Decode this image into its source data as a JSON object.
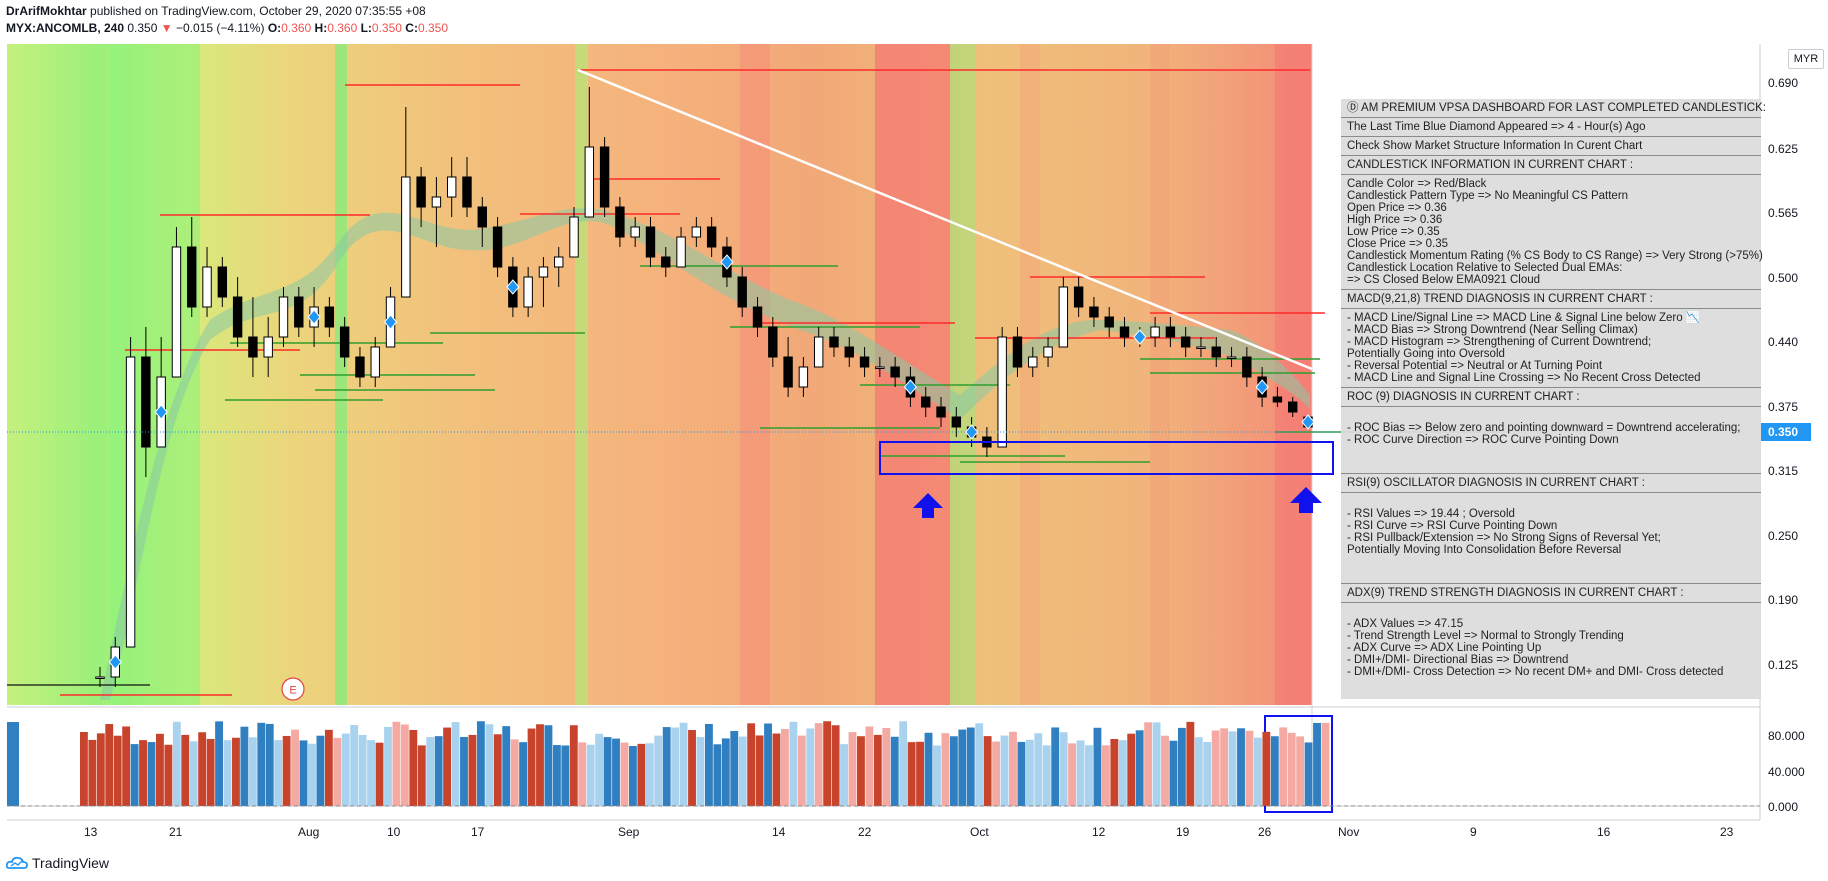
{
  "header": {
    "author": "DrArifMokhtar",
    "published_on": "published on TradingView.com, October 29, 2020 07:35:55 +08",
    "symbol": "MYX:ANCOMLB, 240",
    "last": "0.350",
    "change": "−0.015 (−4.11%)",
    "open_label": "O:",
    "open": "0.360",
    "high_label": "H:",
    "high": "0.360",
    "low_label": "L:",
    "low": "0.350",
    "close_label": "C:",
    "close": "0.350"
  },
  "currency": "MYR",
  "price_axis": {
    "labels": [
      "0.690",
      "0.625",
      "0.565",
      "0.500",
      "0.440",
      "0.375",
      "0.315",
      "0.250",
      "0.190",
      "0.125"
    ],
    "current_price": "0.350"
  },
  "indicator_axis": {
    "labels": [
      "80.000",
      "40.000",
      "0.000"
    ]
  },
  "time_axis": {
    "labels": [
      "13",
      "21",
      "Aug",
      "10",
      "17",
      "Sep",
      "14",
      "22",
      "Oct",
      "12",
      "19",
      "26",
      "Nov",
      "9",
      "16",
      "23"
    ]
  },
  "earnings_marker": "E",
  "dashboard": {
    "sections": [
      {
        "lines": [
          "Ⓓ AM PREMIUM VPSA DASHBOARD FOR LAST COMPLETED CANDLESTICK:"
        ]
      },
      {
        "lines": [
          "The Last Time Blue Diamond Appeared => 4 - Hour(s) Ago"
        ]
      },
      {
        "lines": [
          "Check Show Market Structure Information In Curent Chart"
        ]
      },
      {
        "lines": [
          "CANDLESTICK INFORMATION IN CURRENT CHART :"
        ]
      },
      {
        "lines": [
          "Candle Color => Red/Black",
          "Candlestick Pattern Type => No Meaningful CS Pattern",
          "Open Price => 0.36",
          "High Price => 0.36",
          "Low Price => 0.35",
          "Close Price => 0.35",
          "Candlestick Momentum Rating (% CS Body to CS Range) => Very Strong (>75%)",
          "Candlestick Location Relative to Selected Dual EMAs:",
          " => CS Closed Below EMA0921 Cloud"
        ]
      },
      {
        "lines": [
          "MACD(9,21,8) TREND DIAGNOSIS IN CURRENT CHART :"
        ]
      },
      {
        "lines": [
          "- MACD Line/Signal Line => MACD Line & Signal Line below Zero 📉",
          "- MACD Bias => Strong Downtrend (Near Selling Climax)",
          "- MACD Histogram => Strengthening of Current Downtrend;",
          "  Potentially Going into Oversold",
          "- Reversal Potential => Neutral or At Turning Point",
          "- MACD Line and Signal Line Crossing => No Recent Cross Detected"
        ]
      },
      {
        "lines": [
          "ROC (9) DIAGNOSIS IN CURRENT CHART :"
        ]
      },
      {
        "lines": [
          "",
          "- ROC Bias => Below zero and pointing downward = Downtrend accelerating;",
          "- ROC Curve Direction => ROC Curve Pointing Down",
          "",
          ""
        ]
      },
      {
        "lines": [
          "RSI(9) OSCILLATOR DIAGNOSIS IN CURRENT CHART :"
        ]
      },
      {
        "lines": [
          "",
          "- RSI Values => 19.44 ; Oversold",
          "- RSI Curve => RSI Curve Pointing Down",
          "- RSI Pullback/Extension => No Strong Signs of Reversal Yet;",
          "  Potentially Moving Into Consolidation Before Reversal",
          "",
          ""
        ]
      },
      {
        "lines": [
          "ADX(9) TREND STRENGTH DIAGNOSIS IN CURRENT CHART :"
        ]
      },
      {
        "lines": [
          "",
          "- ADX Values => 47.15",
          "- Trend Strength Level => Normal to Strongly Trending",
          "- ADX Curve => ADX Line Pointing Up",
          "- DMI+/DMI- Directional Bias => Downtrend",
          "- DMI+/DMI- Cross Detection => No recent DM+ and DMI- Cross detected"
        ]
      }
    ]
  },
  "footer": {
    "brand": "TradingView"
  },
  "colors": {
    "up_candle": "#ffffff",
    "down_candle": "#000000",
    "diamond": "#2196f3",
    "arrow": "#1111ee",
    "price_tag": "#2196f3",
    "res_line": "#ff2a2a",
    "sup_line": "#2e9e2e"
  },
  "candles": [
    [
      0.1,
      0.11,
      0.09,
      0.1
    ],
    [
      0.1,
      0.14,
      0.09,
      0.13
    ],
    [
      0.13,
      0.44,
      0.13,
      0.42
    ],
    [
      0.42,
      0.45,
      0.3,
      0.33
    ],
    [
      0.33,
      0.44,
      0.33,
      0.4
    ],
    [
      0.4,
      0.55,
      0.4,
      0.53
    ],
    [
      0.53,
      0.56,
      0.46,
      0.47
    ],
    [
      0.47,
      0.53,
      0.46,
      0.51
    ],
    [
      0.51,
      0.52,
      0.47,
      0.48
    ],
    [
      0.48,
      0.5,
      0.43,
      0.44
    ],
    [
      0.44,
      0.48,
      0.4,
      0.42
    ],
    [
      0.42,
      0.46,
      0.4,
      0.44
    ],
    [
      0.44,
      0.49,
      0.43,
      0.48
    ],
    [
      0.48,
      0.49,
      0.44,
      0.45
    ],
    [
      0.45,
      0.49,
      0.43,
      0.47
    ],
    [
      0.47,
      0.48,
      0.44,
      0.45
    ],
    [
      0.45,
      0.46,
      0.41,
      0.42
    ],
    [
      0.42,
      0.43,
      0.39,
      0.4
    ],
    [
      0.4,
      0.44,
      0.39,
      0.43
    ],
    [
      0.43,
      0.49,
      0.43,
      0.48
    ],
    [
      0.48,
      0.67,
      0.48,
      0.6
    ],
    [
      0.6,
      0.61,
      0.55,
      0.57
    ],
    [
      0.57,
      0.6,
      0.53,
      0.58
    ],
    [
      0.58,
      0.62,
      0.56,
      0.6
    ],
    [
      0.6,
      0.62,
      0.56,
      0.57
    ],
    [
      0.57,
      0.58,
      0.53,
      0.55
    ],
    [
      0.55,
      0.56,
      0.5,
      0.51
    ],
    [
      0.51,
      0.52,
      0.46,
      0.47
    ],
    [
      0.47,
      0.51,
      0.46,
      0.5
    ],
    [
      0.5,
      0.52,
      0.47,
      0.51
    ],
    [
      0.51,
      0.53,
      0.49,
      0.52
    ],
    [
      0.52,
      0.57,
      0.52,
      0.56
    ],
    [
      0.56,
      0.69,
      0.56,
      0.63
    ],
    [
      0.63,
      0.64,
      0.56,
      0.57
    ],
    [
      0.57,
      0.58,
      0.53,
      0.54
    ],
    [
      0.54,
      0.56,
      0.53,
      0.55
    ],
    [
      0.55,
      0.56,
      0.51,
      0.52
    ],
    [
      0.52,
      0.53,
      0.5,
      0.51
    ],
    [
      0.51,
      0.55,
      0.51,
      0.54
    ],
    [
      0.54,
      0.56,
      0.53,
      0.55
    ],
    [
      0.55,
      0.56,
      0.52,
      0.53
    ],
    [
      0.53,
      0.54,
      0.49,
      0.5
    ],
    [
      0.5,
      0.51,
      0.46,
      0.47
    ],
    [
      0.47,
      0.48,
      0.44,
      0.45
    ],
    [
      0.45,
      0.46,
      0.41,
      0.42
    ],
    [
      0.42,
      0.44,
      0.38,
      0.39
    ],
    [
      0.39,
      0.42,
      0.38,
      0.41
    ],
    [
      0.41,
      0.45,
      0.41,
      0.44
    ],
    [
      0.44,
      0.45,
      0.42,
      0.43
    ],
    [
      0.43,
      0.44,
      0.41,
      0.42
    ],
    [
      0.42,
      0.43,
      0.4,
      0.41
    ],
    [
      0.41,
      0.42,
      0.4,
      0.41
    ],
    [
      0.41,
      0.42,
      0.39,
      0.4
    ],
    [
      0.4,
      0.41,
      0.37,
      0.38
    ],
    [
      0.38,
      0.39,
      0.36,
      0.37
    ],
    [
      0.37,
      0.38,
      0.35,
      0.36
    ],
    [
      0.36,
      0.37,
      0.34,
      0.35
    ],
    [
      0.35,
      0.36,
      0.33,
      0.34
    ],
    [
      0.34,
      0.35,
      0.32,
      0.33
    ],
    [
      0.33,
      0.45,
      0.33,
      0.44
    ],
    [
      0.44,
      0.45,
      0.4,
      0.41
    ],
    [
      0.41,
      0.43,
      0.4,
      0.42
    ],
    [
      0.42,
      0.44,
      0.41,
      0.43
    ],
    [
      0.43,
      0.5,
      0.43,
      0.49
    ],
    [
      0.49,
      0.5,
      0.46,
      0.47
    ],
    [
      0.47,
      0.48,
      0.45,
      0.46
    ],
    [
      0.46,
      0.47,
      0.44,
      0.45
    ],
    [
      0.45,
      0.46,
      0.43,
      0.44
    ],
    [
      0.44,
      0.45,
      0.43,
      0.44
    ],
    [
      0.44,
      0.46,
      0.43,
      0.45
    ],
    [
      0.45,
      0.46,
      0.43,
      0.44
    ],
    [
      0.44,
      0.45,
      0.42,
      0.43
    ],
    [
      0.43,
      0.44,
      0.42,
      0.43
    ],
    [
      0.43,
      0.44,
      0.41,
      0.42
    ],
    [
      0.42,
      0.43,
      0.41,
      0.42
    ],
    [
      0.42,
      0.43,
      0.39,
      0.4
    ],
    [
      0.4,
      0.41,
      0.37,
      0.38
    ],
    [
      0.38,
      0.39,
      0.37,
      0.375
    ],
    [
      0.375,
      0.38,
      0.36,
      0.365
    ],
    [
      0.36,
      0.36,
      0.35,
      0.35
    ]
  ]
}
